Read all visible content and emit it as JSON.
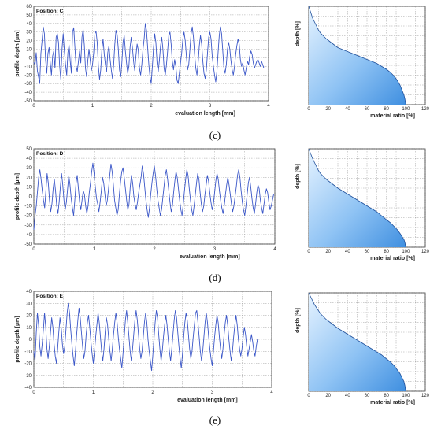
{
  "chart_data": [
    {
      "type": "line",
      "panel": "c",
      "position_label": "Position: C",
      "xlabel": "evaluation length [mm]",
      "ylabel": "profile depth [µm]",
      "xlim": [
        0,
        4
      ],
      "ylim": [
        -50,
        60
      ],
      "yticks": [
        60,
        50,
        40,
        30,
        20,
        10,
        0,
        -10,
        -20,
        -30,
        -40,
        -50
      ],
      "xticks": [
        0,
        1,
        2,
        3,
        4
      ],
      "x_step_mm": 0.02,
      "grid": true,
      "line_color": "#3a56c8",
      "values": [
        -5,
        -8,
        6,
        -15,
        -22,
        -30,
        5,
        20,
        36,
        28,
        -2,
        -18,
        5,
        12,
        -6,
        -20,
        2,
        8,
        -12,
        24,
        28,
        18,
        -10,
        -25,
        10,
        28,
        8,
        -8,
        -20,
        6,
        15,
        -4,
        -18,
        30,
        35,
        12,
        -10,
        -16,
        -4,
        8,
        -6,
        24,
        33,
        15,
        -12,
        -22,
        -3,
        10,
        -2,
        -15,
        -8,
        6,
        28,
        31,
        18,
        -10,
        -25,
        -14,
        10,
        22,
        4,
        -8,
        -16,
        6,
        14,
        -2,
        -14,
        -24,
        -8,
        16,
        32,
        27,
        10,
        -14,
        -22,
        -6,
        18,
        26,
        8,
        -6,
        -18,
        -10,
        12,
        24,
        12,
        -4,
        -15,
        2,
        16,
        9,
        -12,
        -20,
        -8,
        10,
        22,
        40,
        32,
        12,
        -8,
        -22,
        -30,
        -10,
        12,
        28,
        18,
        -6,
        -16,
        -3,
        14,
        24,
        10,
        -12,
        -20,
        -8,
        8,
        26,
        30,
        16,
        -4,
        -14,
        -2,
        -10,
        -26,
        -30,
        -18,
        -6,
        6,
        22,
        30,
        20,
        2,
        -14,
        -8,
        10,
        28,
        36,
        24,
        4,
        -12,
        -20,
        -6,
        14,
        26,
        16,
        -4,
        -18,
        -24,
        -14,
        6,
        24,
        30,
        22,
        2,
        -10,
        -20,
        -28,
        -16,
        6,
        26,
        36,
        28,
        8,
        -12,
        -18,
        -8,
        10,
        18,
        10,
        -4,
        -14,
        -20,
        -10,
        4,
        14,
        22,
        16,
        -2,
        -10,
        -6,
        -14,
        -20,
        -12,
        -4,
        -8,
        2,
        8,
        4,
        -6,
        -12,
        -8,
        -4,
        -2,
        -6,
        -10,
        -4,
        -8,
        -12
      ]
    },
    {
      "type": "area",
      "panel": "c",
      "subtype": "material_ratio_curve",
      "xlabel": "material ratio [%]",
      "ylabel": "depth [%]",
      "xlim": [
        0,
        120
      ],
      "ylim": [
        0,
        100
      ],
      "xticks": [
        0,
        20,
        40,
        60,
        80,
        100,
        120
      ],
      "grid": true,
      "fill_color": "#3f8fe0",
      "x": [
        0,
        2,
        4,
        6,
        8,
        10,
        12,
        15,
        18,
        22,
        26,
        30,
        35,
        40,
        45,
        50,
        55,
        60,
        65,
        70,
        75,
        80,
        84,
        88,
        91,
        94,
        96,
        98,
        99,
        100
      ],
      "depth": [
        0,
        6,
        12,
        16,
        20,
        24,
        27,
        30,
        33,
        36,
        39,
        42,
        44,
        46,
        48,
        50,
        52,
        54,
        56,
        58,
        61,
        64,
        67,
        71,
        75,
        80,
        85,
        90,
        94,
        100
      ]
    },
    {
      "type": "line",
      "panel": "d",
      "position_label": "Position: D",
      "xlabel": "evaluation length [mm]",
      "ylabel": "profile depth [µm]",
      "xlim": [
        0,
        4
      ],
      "ylim": [
        -50,
        50
      ],
      "yticks": [
        50,
        40,
        30,
        20,
        10,
        0,
        -10,
        -20,
        -30,
        -40,
        -50
      ],
      "xticks": [
        0,
        1,
        2,
        3,
        4
      ],
      "x_step_mm": 0.02,
      "grid": true,
      "line_color": "#3a56c8",
      "values": [
        -35,
        -20,
        -10,
        5,
        20,
        28,
        18,
        6,
        -4,
        -12,
        6,
        24,
        14,
        -4,
        -16,
        -8,
        8,
        18,
        6,
        -10,
        -18,
        -6,
        10,
        24,
        12,
        -4,
        -14,
        -6,
        8,
        22,
        12,
        -2,
        -12,
        -20,
        -4,
        14,
        22,
        8,
        -6,
        -14,
        -4,
        6,
        2,
        -10,
        -18,
        -10,
        4,
        14,
        26,
        35,
        24,
        10,
        -2,
        -8,
        -16,
        -6,
        6,
        20,
        14,
        2,
        -10,
        -4,
        8,
        22,
        34,
        26,
        12,
        -4,
        -12,
        -20,
        -14,
        2,
        16,
        26,
        30,
        20,
        8,
        -4,
        -14,
        -8,
        10,
        22,
        14,
        0,
        -8,
        -14,
        -6,
        4,
        12,
        20,
        32,
        24,
        10,
        -4,
        -14,
        -22,
        -12,
        2,
        14,
        24,
        32,
        22,
        8,
        -4,
        -12,
        -20,
        -14,
        -2,
        10,
        22,
        28,
        18,
        6,
        -6,
        -16,
        -10,
        4,
        16,
        26,
        20,
        8,
        -4,
        -14,
        -20,
        -8,
        6,
        18,
        28,
        22,
        8,
        -4,
        -14,
        -20,
        -10,
        2,
        14,
        24,
        18,
        4,
        -8,
        -16,
        -10,
        2,
        12,
        22,
        16,
        4,
        -6,
        -14,
        -8,
        4,
        16,
        24,
        18,
        6,
        -4,
        -12,
        -18,
        -10,
        2,
        12,
        20,
        12,
        2,
        -8,
        -16,
        -10,
        0,
        10,
        22,
        28,
        20,
        6,
        -6,
        -14,
        -20,
        -10,
        2,
        14,
        20,
        10,
        -2,
        -12,
        -18,
        -8,
        4,
        12,
        8,
        -4,
        -12,
        -18,
        -8,
        2,
        8,
        4,
        -6,
        -14,
        -10,
        -4,
        2
      ]
    },
    {
      "type": "area",
      "panel": "d",
      "subtype": "material_ratio_curve",
      "xlabel": "material ratio [%]",
      "ylabel": "depth [%]",
      "xlim": [
        0,
        120
      ],
      "ylim": [
        0,
        100
      ],
      "xticks": [
        0,
        20,
        40,
        60,
        80,
        100,
        120
      ],
      "grid": true,
      "fill_color": "#3f8fe0",
      "x": [
        0,
        2,
        4,
        6,
        8,
        10,
        12,
        15,
        18,
        22,
        26,
        30,
        35,
        40,
        45,
        50,
        55,
        60,
        65,
        70,
        75,
        80,
        84,
        88,
        91,
        94,
        96,
        98,
        99,
        100
      ],
      "depth": [
        0,
        5,
        10,
        14,
        18,
        22,
        25,
        28,
        31,
        34,
        37,
        40,
        43,
        46,
        49,
        52,
        55,
        58,
        61,
        64,
        68,
        72,
        75,
        79,
        82,
        86,
        89,
        92,
        95,
        100
      ]
    },
    {
      "type": "line",
      "panel": "e",
      "position_label": "Position: E",
      "xlabel": "evaluation length [mm]",
      "ylabel": "profile depth [µm]",
      "xlim": [
        0,
        4
      ],
      "ylim": [
        -40,
        40
      ],
      "yticks": [
        40,
        30,
        20,
        10,
        0,
        -10,
        -20,
        -30,
        -40
      ],
      "xticks": [
        0,
        1,
        2,
        3,
        4
      ],
      "x_step_mm": 0.02,
      "grid": true,
      "line_color": "#3a56c8",
      "values": [
        -10,
        -18,
        5,
        22,
        12,
        -6,
        -14,
        -4,
        8,
        22,
        10,
        -8,
        -16,
        -6,
        6,
        18,
        10,
        -4,
        -14,
        -20,
        -8,
        6,
        18,
        10,
        -4,
        -12,
        -6,
        8,
        22,
        30,
        22,
        8,
        -4,
        -14,
        -22,
        -10,
        4,
        16,
        26,
        18,
        6,
        -6,
        -16,
        -10,
        4,
        14,
        20,
        10,
        -2,
        -12,
        -20,
        -10,
        2,
        12,
        22,
        14,
        2,
        -10,
        -18,
        -8,
        6,
        18,
        12,
        0,
        -10,
        -18,
        -8,
        4,
        14,
        22,
        14,
        2,
        -8,
        -16,
        -24,
        -12,
        2,
        16,
        24,
        14,
        2,
        -10,
        -18,
        -8,
        4,
        16,
        24,
        16,
        4,
        -8,
        -16,
        -10,
        2,
        14,
        22,
        14,
        0,
        -10,
        -18,
        -26,
        -14,
        0,
        14,
        24,
        18,
        4,
        -8,
        -18,
        -10,
        2,
        12,
        20,
        12,
        0,
        -10,
        -18,
        -8,
        4,
        16,
        24,
        18,
        6,
        -6,
        -16,
        -24,
        -12,
        2,
        14,
        22,
        16,
        4,
        -8,
        -16,
        -10,
        2,
        12,
        22,
        24,
        14,
        2,
        -10,
        -18,
        -10,
        2,
        14,
        22,
        14,
        2,
        -8,
        -16,
        -22,
        -10,
        2,
        12,
        20,
        14,
        2,
        -8,
        -16,
        -8,
        4,
        14,
        20,
        12,
        0,
        -10,
        -18,
        -10,
        2,
        12,
        20,
        12,
        0,
        -8,
        -14,
        -8,
        2,
        10,
        4,
        -6,
        -14,
        -8,
        -2,
        4,
        -2,
        -10,
        -14,
        -6,
        0
      ]
    },
    {
      "type": "area",
      "panel": "e",
      "subtype": "material_ratio_curve",
      "xlabel": "material ratio [%]",
      "ylabel": "depth [%]",
      "xlim": [
        0,
        120
      ],
      "ylim": [
        0,
        100
      ],
      "xticks": [
        0,
        20,
        40,
        60,
        80,
        100,
        120
      ],
      "grid": true,
      "fill_color": "#3f8fe0",
      "x": [
        0,
        2,
        4,
        6,
        8,
        10,
        12,
        15,
        18,
        22,
        26,
        30,
        35,
        40,
        45,
        50,
        55,
        60,
        65,
        70,
        75,
        80,
        84,
        88,
        91,
        94,
        96,
        98,
        99,
        100
      ],
      "depth": [
        0,
        4,
        8,
        12,
        15,
        18,
        21,
        24,
        27,
        30,
        33,
        36,
        39,
        42,
        45,
        48,
        51,
        54,
        57,
        60,
        63,
        67,
        70,
        74,
        78,
        82,
        86,
        90,
        94,
        100
      ]
    }
  ],
  "captions": [
    "(c)",
    "(d)",
    "(e)"
  ]
}
